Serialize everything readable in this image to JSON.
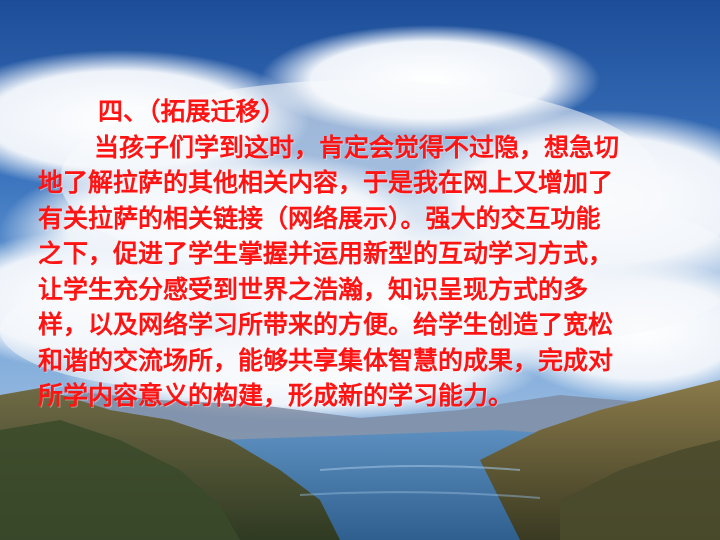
{
  "slide": {
    "heading": "四、（拓展迁移）",
    "paragraph_lines": [
      "当孩子们学到这时，肯定会觉得不过隐，想急切",
      "地了解拉萨的其他相关内容，于是我在网上又增加了",
      "有关拉萨的相关链接（网络展示）。强大的交互功能",
      "之下，促进了学生掌握并运用新型的互动学习方式，",
      "让学生充分感受到世界之浩瀚，知识呈现方式的多",
      "样，以及网络学习所带来的方便。给学生创造了宽松",
      "和谐的交流场所，能够共享集体智慧的成果，完成对",
      "所学内容意义的构建，形成新的学习能力。"
    ]
  },
  "colors": {
    "text": "#ff1414",
    "sky_top": "#1e4f9a",
    "sky_mid": "#6c9fd6",
    "cloud": "#f4f7fb",
    "mountain": "#5a5a3a",
    "lake": "#3f6f9c"
  }
}
